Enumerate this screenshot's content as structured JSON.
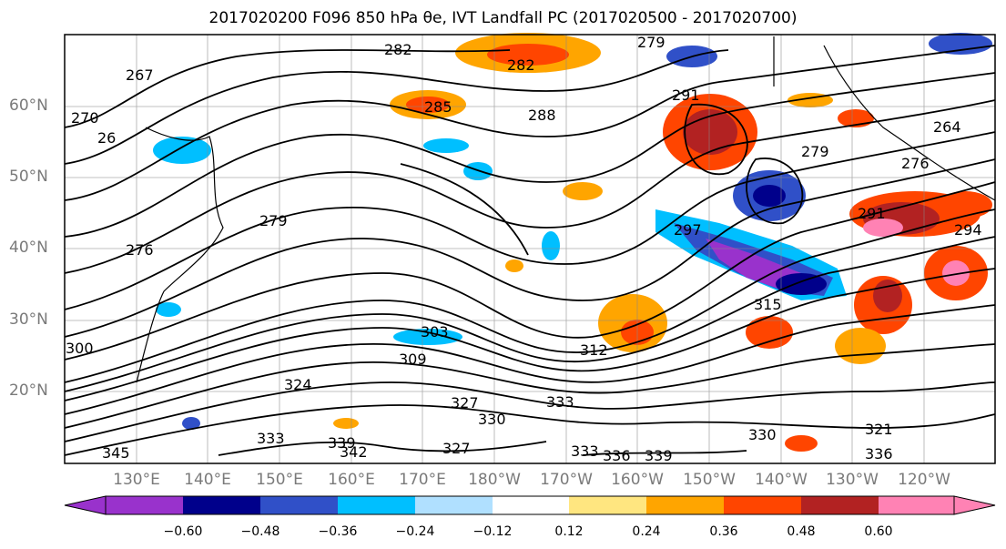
{
  "title": "2017020200 F096 850 hPa θe, IVT Landfall PC (2017020500 - 2017020700)",
  "map": {
    "lat_labels": [
      "60°N",
      "50°N",
      "40°N",
      "30°N",
      "20°N"
    ],
    "lon_labels": [
      "130°E",
      "140°E",
      "150°E",
      "160°E",
      "170°E",
      "180°W",
      "170°W",
      "160°W",
      "150°W",
      "140°W",
      "130°W",
      "120°W"
    ],
    "contour_labels": [
      {
        "text": "282"
      },
      {
        "text": "282"
      },
      {
        "text": "279"
      },
      {
        "text": "285"
      },
      {
        "text": "288"
      },
      {
        "text": "291"
      },
      {
        "text": "267"
      },
      {
        "text": "270"
      },
      {
        "text": "26"
      },
      {
        "text": "279"
      },
      {
        "text": "276"
      },
      {
        "text": "297"
      },
      {
        "text": "300"
      },
      {
        "text": "303"
      },
      {
        "text": "309"
      },
      {
        "text": "312"
      },
      {
        "text": "315"
      },
      {
        "text": "324"
      },
      {
        "text": "327"
      },
      {
        "text": "327"
      },
      {
        "text": "330"
      },
      {
        "text": "330"
      },
      {
        "text": "333"
      },
      {
        "text": "333"
      },
      {
        "text": "333"
      },
      {
        "text": "336"
      },
      {
        "text": "336"
      },
      {
        "text": "339"
      },
      {
        "text": "339"
      },
      {
        "text": "342"
      },
      {
        "text": "345"
      },
      {
        "text": "321"
      },
      {
        "text": "279"
      },
      {
        "text": "291"
      },
      {
        "text": "294"
      },
      {
        "text": "276"
      },
      {
        "text": "264"
      }
    ]
  },
  "colorbar": {
    "ticks": [
      "−0.60",
      "−0.48",
      "−0.36",
      "−0.24",
      "−0.12",
      "0.12",
      "0.24",
      "0.36",
      "0.48",
      "0.60"
    ],
    "colors": [
      "#9932cc",
      "#00008b",
      "#3050c8",
      "#00bfff",
      "#b0e0ff",
      "#ffffff",
      "#ffe680",
      "#ffa500",
      "#ff4500",
      "#b22222",
      "#ff82b4"
    ]
  }
}
